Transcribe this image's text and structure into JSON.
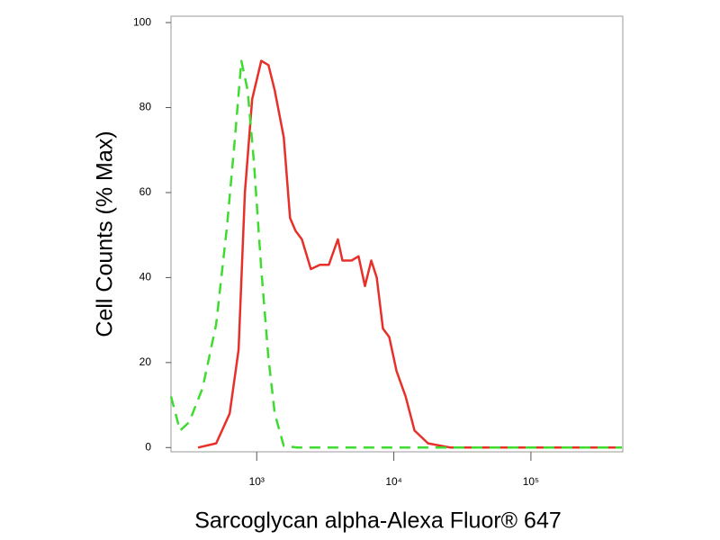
{
  "chart_data": {
    "type": "line",
    "xlabel": "Sarcoglycan alpha-Alexa Fluor® 647",
    "ylabel": "Cell Counts (% Max)",
    "xscale": "log",
    "xlim": [
      237,
      468000
    ],
    "ylim": [
      -1,
      101.5
    ],
    "xticks": [
      {
        "value": 1000,
        "label": "10³"
      },
      {
        "value": 10000,
        "label": "10⁴"
      },
      {
        "value": 100000,
        "label": "10⁵"
      }
    ],
    "yticks": [
      0,
      20,
      40,
      60,
      80,
      100
    ],
    "series": [
      {
        "color": "#e8302a",
        "dash": false,
        "x": [
          373,
          506,
          635,
          738,
          820,
          927,
          1079,
          1219,
          1355,
          1576,
          1751,
          1919,
          2133,
          2483,
          2888,
          3360,
          3908,
          4217,
          4907,
          5534,
          6155,
          6850,
          7506,
          8336,
          9267,
          10470,
          12190,
          14160,
          17780,
          25960,
          461000
        ],
        "values": [
          0,
          1,
          8,
          23,
          60,
          82,
          91,
          90,
          84,
          73,
          54,
          51,
          49,
          42,
          43,
          43,
          49,
          44,
          44,
          45,
          38,
          44,
          40,
          28,
          26,
          18,
          12,
          4,
          1,
          0,
          0
        ]
      },
      {
        "color": "#3ddc2f",
        "dash": true,
        "x": [
          237,
          276,
          322,
          403,
          506,
          607,
          686,
          773,
          859,
          955,
          1079,
          1219,
          1355,
          1576,
          1977,
          461000
        ],
        "values": [
          12,
          4,
          6,
          14,
          29,
          52,
          71,
          91,
          84,
          67,
          42,
          21,
          8,
          0.4,
          0,
          0
        ]
      }
    ]
  }
}
